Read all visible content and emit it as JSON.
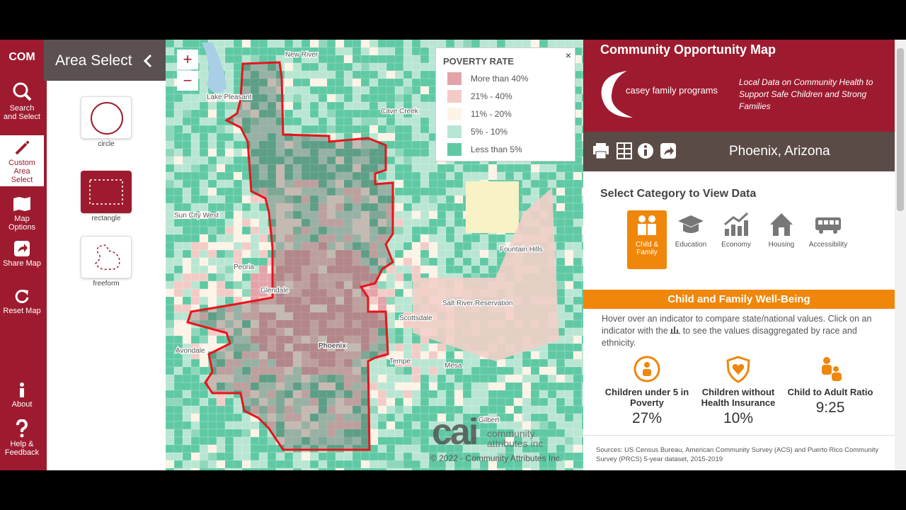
{
  "sidebar": {
    "logo": "COM",
    "items": [
      "Search and Select",
      "Custom Area Select",
      "Map Options",
      "Share Map",
      "Reset Map"
    ],
    "bottom_items": [
      "About",
      "Help & Feedback"
    ]
  },
  "panel": {
    "title": "Area Select",
    "tools": [
      "circle",
      "rectangle",
      "freeform"
    ]
  },
  "map": {
    "zoom": [
      "+",
      "−"
    ],
    "labels": [
      "New River",
      "Lake Pleasant",
      "Cave Creek",
      "Sun City West",
      "Peoria",
      "Glendale",
      "Phoenix",
      "Scottsdale",
      "Fountain Hills",
      "Salt River Reservation",
      "Tempe",
      "Mesa",
      "Gilbert",
      "Avondale"
    ],
    "legend": {
      "title": "POVERTY RATE",
      "close": "×",
      "items": [
        {
          "label": "More than 40%",
          "color": "#e3a3a9"
        },
        {
          "label": "21% - 40%",
          "color": "#f3cbc6"
        },
        {
          "label": "11% - 20%",
          "color": "#fdf3e6"
        },
        {
          "label": "5% - 10%",
          "color": "#b9e6d3"
        },
        {
          "label": "Less than 5%",
          "color": "#5fc9a4"
        }
      ]
    },
    "attribution": {
      "logo": "cai",
      "company": "community attributes inc",
      "copyright": "© 2022 - Community Attributes Inc."
    }
  },
  "right_panel": {
    "title": "Community Opportunity Map",
    "brand": "casey family programs",
    "tagline": "Local Data on Community Health to Support Safe Children and Strong Families",
    "location": "Phoenix, Arizona",
    "category_heading": "Select Category to View Data",
    "categories": [
      "Child & Family",
      "Education",
      "Economy",
      "Housing",
      "Accessibility"
    ],
    "section_title": "Child and Family Well-Being",
    "intro_before": "Hover over an indicator to compare state/national values. Click on an indicator with the",
    "intro_after": "to see the values disaggregated by race and ethnicity.",
    "indicators": [
      {
        "name": "Children under 5 in Poverty",
        "value": "27%"
      },
      {
        "name": "Children without Health Insurance",
        "value": "10%"
      },
      {
        "name": "Child to Adult Ratio",
        "value": "9:25"
      }
    ],
    "sources": "Sources: US Census Bureau, American Community Survey (ACS) and Puerto Rico Community Survey (PRCS) 5-year dataset, 2015-2019"
  }
}
